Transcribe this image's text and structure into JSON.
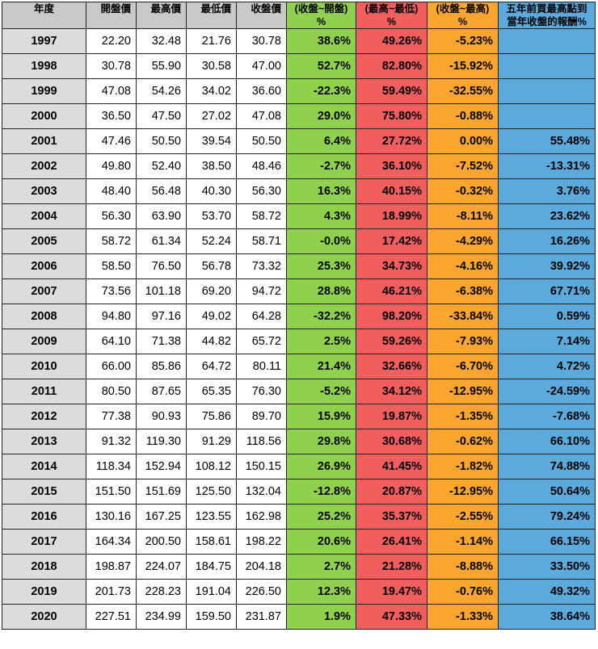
{
  "headers": {
    "year": "年度",
    "open": "開盤價",
    "high": "最高價",
    "low": "最低價",
    "close": "收盤價",
    "close_open": [
      "(收盤~開盤)",
      "%"
    ],
    "high_low": [
      "(最高~最低)",
      "%"
    ],
    "close_high": [
      "(收盤~最高)",
      "%"
    ],
    "five_year": [
      "五年前買最高點到",
      "當年收盤的報酬%"
    ]
  },
  "colors": {
    "header_bg": "#c9c9c9",
    "year_bg": "#dcdcdc",
    "green": "#8fd14f",
    "red": "#f15e5e",
    "orange": "#faa530",
    "blue": "#5ca9dc"
  },
  "rows": [
    [
      "1997",
      "22.20",
      "32.48",
      "21.76",
      "30.78",
      "38.6%",
      "49.26%",
      "-5.23%",
      ""
    ],
    [
      "1998",
      "30.78",
      "55.90",
      "30.58",
      "47.00",
      "52.7%",
      "82.80%",
      "-15.92%",
      ""
    ],
    [
      "1999",
      "47.08",
      "54.26",
      "34.02",
      "36.60",
      "-22.3%",
      "59.49%",
      "-32.55%",
      ""
    ],
    [
      "2000",
      "36.50",
      "47.50",
      "27.02",
      "47.08",
      "29.0%",
      "75.80%",
      "-0.88%",
      ""
    ],
    [
      "2001",
      "47.46",
      "50.50",
      "39.54",
      "50.50",
      "6.4%",
      "27.72%",
      "0.00%",
      "55.48%"
    ],
    [
      "2002",
      "49.80",
      "52.40",
      "38.50",
      "48.46",
      "-2.7%",
      "36.10%",
      "-7.52%",
      "-13.31%"
    ],
    [
      "2003",
      "48.40",
      "56.48",
      "40.30",
      "56.30",
      "16.3%",
      "40.15%",
      "-0.32%",
      "3.76%"
    ],
    [
      "2004",
      "56.30",
      "63.90",
      "53.70",
      "58.72",
      "4.3%",
      "18.99%",
      "-8.11%",
      "23.62%"
    ],
    [
      "2005",
      "58.72",
      "61.34",
      "52.24",
      "58.71",
      "-0.0%",
      "17.42%",
      "-4.29%",
      "16.26%"
    ],
    [
      "2006",
      "58.50",
      "76.50",
      "56.78",
      "73.32",
      "25.3%",
      "34.73%",
      "-4.16%",
      "39.92%"
    ],
    [
      "2007",
      "73.56",
      "101.18",
      "69.20",
      "94.72",
      "28.8%",
      "46.21%",
      "-6.38%",
      "67.71%"
    ],
    [
      "2008",
      "94.80",
      "97.16",
      "49.02",
      "64.28",
      "-32.2%",
      "98.20%",
      "-33.84%",
      "0.59%"
    ],
    [
      "2009",
      "64.10",
      "71.38",
      "44.82",
      "65.72",
      "2.5%",
      "59.26%",
      "-7.93%",
      "7.14%"
    ],
    [
      "2010",
      "66.00",
      "85.86",
      "64.72",
      "80.11",
      "21.4%",
      "32.66%",
      "-6.70%",
      "4.72%"
    ],
    [
      "2011",
      "80.50",
      "87.65",
      "65.35",
      "76.30",
      "-5.2%",
      "34.12%",
      "-12.95%",
      "-24.59%"
    ],
    [
      "2012",
      "77.38",
      "90.93",
      "75.86",
      "89.70",
      "15.9%",
      "19.87%",
      "-1.35%",
      "-7.68%"
    ],
    [
      "2013",
      "91.32",
      "119.30",
      "91.29",
      "118.56",
      "29.8%",
      "30.68%",
      "-0.62%",
      "66.10%"
    ],
    [
      "2014",
      "118.34",
      "152.94",
      "108.12",
      "150.15",
      "26.9%",
      "41.45%",
      "-1.82%",
      "74.88%"
    ],
    [
      "2015",
      "151.50",
      "151.69",
      "125.50",
      "132.04",
      "-12.8%",
      "20.87%",
      "-12.95%",
      "50.64%"
    ],
    [
      "2016",
      "130.16",
      "167.25",
      "123.55",
      "162.98",
      "25.2%",
      "35.37%",
      "-2.55%",
      "79.24%"
    ],
    [
      "2017",
      "164.34",
      "200.50",
      "158.61",
      "198.22",
      "20.6%",
      "26.41%",
      "-1.14%",
      "66.15%"
    ],
    [
      "2018",
      "198.87",
      "224.07",
      "184.75",
      "204.18",
      "2.7%",
      "21.28%",
      "-8.88%",
      "33.50%"
    ],
    [
      "2019",
      "201.73",
      "228.23",
      "191.04",
      "226.50",
      "12.3%",
      "19.47%",
      "-0.76%",
      "49.32%"
    ],
    [
      "2020",
      "227.51",
      "234.99",
      "159.50",
      "231.87",
      "1.9%",
      "47.33%",
      "-1.33%",
      "38.64%"
    ]
  ]
}
